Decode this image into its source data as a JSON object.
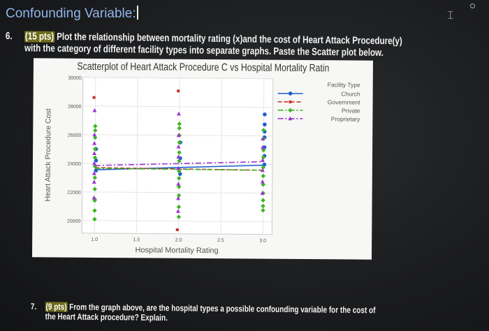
{
  "document": {
    "heading": "Confounding Variable:",
    "q6": {
      "number": "6.",
      "points": "(15 pts)",
      "line1": " Plot the relationship between mortality rating (x)and the cost of Heart Attack Procedure(y)",
      "line2": "with the category of different facility types into separate graphs. Paste the Scatter plot below."
    },
    "q7": {
      "number": "7.",
      "points": "(9 pts)",
      "line1": " From the graph above, are the hospital types a possible confounding variable for the cost of",
      "line2": "the Heart Attack procedure? Explain."
    }
  },
  "chart_data": {
    "type": "scatter",
    "title": "Scatterplot of Heart Attack Procedure C vs Hospital Mortality Ratin",
    "xlabel": "Hospital Mortality Rating",
    "ylabel": "Heart Attack Procedure Cost",
    "xlim": [
      0.9,
      3.1
    ],
    "ylim": [
      19000,
      30000
    ],
    "xticks": [
      "1.0",
      "1.5",
      "2.0",
      "2.5",
      "3.0"
    ],
    "yticks": [
      "20000",
      "22000",
      "24000",
      "26000",
      "28000",
      "30000"
    ],
    "grid": true,
    "legend": {
      "title": "Facility Type",
      "placement": "right"
    },
    "series": [
      {
        "name": "Church",
        "color": "#1f5fd0",
        "marker": "circle",
        "line": "solid",
        "points": [
          [
            3,
            27500
          ],
          [
            3,
            26800
          ],
          [
            3,
            26300
          ],
          [
            3,
            25900
          ],
          [
            3,
            25200
          ],
          [
            3,
            24600
          ],
          [
            3,
            24000
          ],
          [
            1,
            25000
          ],
          [
            1,
            24200
          ],
          [
            1,
            23500
          ],
          [
            2,
            25500
          ],
          [
            2,
            24400
          ],
          [
            2,
            23300
          ]
        ],
        "trend": [
          [
            1,
            23550
          ],
          [
            3,
            23950
          ]
        ]
      },
      {
        "name": "Government",
        "color": "#c8322a",
        "marker": "square",
        "line": "dashed",
        "points": [
          [
            1,
            28600
          ],
          [
            2,
            29100
          ],
          [
            2,
            19400
          ]
        ],
        "trend": [
          [
            1,
            23700
          ],
          [
            3,
            23600
          ]
        ]
      },
      {
        "name": "Private",
        "color": "#3cb521",
        "marker": "diamond",
        "line": "dashdot",
        "points": [
          [
            1,
            26600
          ],
          [
            1,
            26300
          ],
          [
            1,
            25800
          ],
          [
            1,
            25000
          ],
          [
            1,
            24400
          ],
          [
            1,
            23800
          ],
          [
            1,
            23000
          ],
          [
            1,
            22200
          ],
          [
            1,
            21500
          ],
          [
            1,
            21400
          ],
          [
            1,
            20700
          ],
          [
            1,
            20100
          ],
          [
            2,
            26800
          ],
          [
            2,
            26500
          ],
          [
            2,
            26000
          ],
          [
            2,
            25500
          ],
          [
            2,
            24800
          ],
          [
            2,
            24200
          ],
          [
            2,
            23500
          ],
          [
            2,
            23000
          ],
          [
            2,
            22400
          ],
          [
            2,
            21800
          ],
          [
            2,
            21000
          ],
          [
            2,
            20300
          ],
          [
            3,
            26400
          ],
          [
            3,
            25800
          ],
          [
            3,
            25000
          ],
          [
            3,
            24500
          ],
          [
            3,
            23800
          ],
          [
            3,
            23200
          ],
          [
            3,
            22600
          ],
          [
            3,
            22000
          ],
          [
            3,
            21500
          ],
          [
            3,
            21100
          ],
          [
            3,
            20800
          ]
        ],
        "trend": [
          [
            1,
            23650
          ],
          [
            3,
            23600
          ]
        ]
      },
      {
        "name": "Proprietary",
        "color": "#9b36d0",
        "marker": "triangle",
        "line": "dashdot",
        "points": [
          [
            1,
            27700
          ],
          [
            1,
            26000
          ],
          [
            1,
            25400
          ],
          [
            1,
            24700
          ],
          [
            1,
            24000
          ],
          [
            1,
            23300
          ],
          [
            1,
            22700
          ],
          [
            1,
            21600
          ],
          [
            2,
            27500
          ],
          [
            2,
            26000
          ],
          [
            2,
            25200
          ],
          [
            2,
            24500
          ],
          [
            2,
            23700
          ],
          [
            2,
            22600
          ],
          [
            2,
            21600
          ],
          [
            2,
            20700
          ],
          [
            3,
            25800
          ],
          [
            3,
            25200
          ],
          [
            3,
            24300
          ],
          [
            3,
            23600
          ],
          [
            3,
            22800
          ],
          [
            3,
            22000
          ]
        ],
        "trend": [
          [
            1,
            23850
          ],
          [
            3,
            24200
          ]
        ]
      }
    ]
  }
}
